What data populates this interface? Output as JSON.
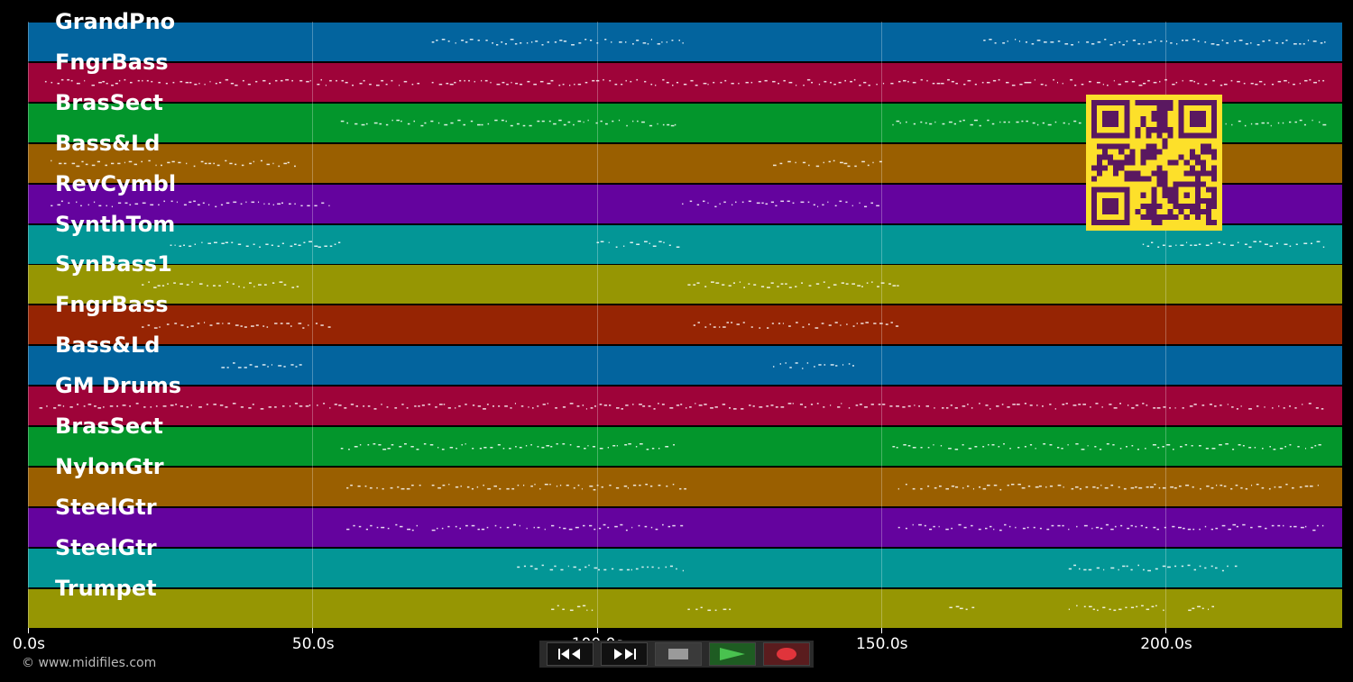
{
  "tracks": [
    {
      "label": "GrandPno",
      "color": "#03649e"
    },
    {
      "label": "FngrBass",
      "color": "#9e0339"
    },
    {
      "label": "BrasSect",
      "color": "#03962c"
    },
    {
      "label": "Bass&Ld",
      "color": "#9a5f00"
    },
    {
      "label": "RevCymbl",
      "color": "#64039e"
    },
    {
      "label": "SynthTom",
      "color": "#039696"
    },
    {
      "label": "SynBass1",
      "color": "#969603"
    },
    {
      "label": "FngrBass",
      "color": "#962403"
    },
    {
      "label": "Bass&Ld",
      "color": "#03649e"
    },
    {
      "label": "GM Drums",
      "color": "#9e0339"
    },
    {
      "label": "BrasSect",
      "color": "#03962c"
    },
    {
      "label": "NylonGtr",
      "color": "#9a5f00"
    },
    {
      "label": "SteelGtr",
      "color": "#64039e"
    },
    {
      "label": "SteelGtr",
      "color": "#039696"
    },
    {
      "label": "Trumpet",
      "color": "#969603"
    }
  ],
  "timeline": {
    "max_seconds": 230.9,
    "ticks": [
      {
        "value": 0,
        "label": "0.0s"
      },
      {
        "value": 50,
        "label": "50.0s"
      },
      {
        "value": 100,
        "label": "100.0s"
      },
      {
        "value": 150,
        "label": "150.0s"
      },
      {
        "value": 200,
        "label": "200.0s"
      }
    ]
  },
  "activity": [
    [
      [
        71,
        116
      ],
      [
        168,
        228
      ]
    ],
    [
      [
        3,
        69
      ],
      [
        71,
        228
      ]
    ],
    [
      [
        55,
        114
      ],
      [
        152,
        228
      ]
    ],
    [
      [
        4,
        48
      ],
      [
        131,
        150
      ]
    ],
    [
      [
        4,
        53
      ],
      [
        115,
        150
      ]
    ],
    [
      [
        25,
        55
      ],
      [
        100,
        115
      ],
      [
        196,
        228
      ]
    ],
    [
      [
        20,
        48
      ],
      [
        116,
        153
      ]
    ],
    [
      [
        20,
        54
      ],
      [
        117,
        153
      ]
    ],
    [
      [
        34,
        48
      ],
      [
        131,
        146
      ]
    ],
    [
      [
        2,
        228
      ]
    ],
    [
      [
        55,
        114
      ],
      [
        152,
        228
      ]
    ],
    [
      [
        56,
        69
      ],
      [
        71,
        116
      ],
      [
        153,
        228
      ]
    ],
    [
      [
        56,
        69
      ],
      [
        71,
        115
      ],
      [
        153,
        228
      ]
    ],
    [
      [
        86,
        116
      ],
      [
        183,
        213
      ]
    ],
    [
      [
        92,
        100
      ],
      [
        116,
        124
      ],
      [
        162,
        167
      ],
      [
        183,
        200
      ],
      [
        204,
        209
      ]
    ]
  ],
  "copyright": "© www.midifiles.com",
  "transport": {
    "buttons": [
      {
        "name": "rewind-button",
        "icon": "rewind-icon"
      },
      {
        "name": "fast-forward-button",
        "icon": "fast-forward-icon"
      },
      {
        "name": "stop-button",
        "icon": "stop-icon"
      },
      {
        "name": "play-button",
        "icon": "play-icon"
      },
      {
        "name": "record-button",
        "icon": "record-icon"
      }
    ]
  },
  "qr_icon": "qr-code-icon",
  "colors": {
    "qr_fg": "#5a1860",
    "qr_bg": "#fde02a",
    "play": "#49c24f",
    "record": "#e0343b"
  }
}
